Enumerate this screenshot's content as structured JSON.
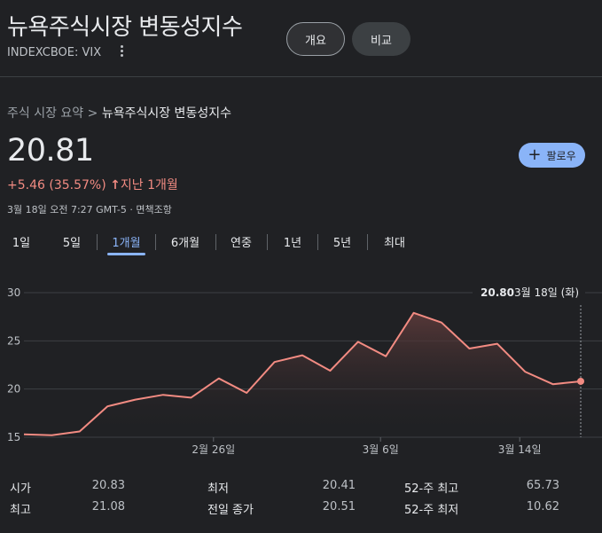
{
  "header": {
    "title": "뉴욕주식시장 변동성지수",
    "ticker": "INDEXCBOE: VIX",
    "buttons": {
      "overview": "개요",
      "compare": "비교"
    }
  },
  "breadcrumb": {
    "root": "주식 시장 요약",
    "separator": ">",
    "current": "뉴욕주식시장 변동성지수"
  },
  "quote": {
    "price": "20.81",
    "change": "+5.46 (35.57%)",
    "direction_icon": "arrow-up-icon",
    "period": "지난 1개월",
    "timestamp": "3월 18일 오전 7:27 GMT-5 · 면책조항"
  },
  "follow_button": {
    "label": "팔로우",
    "icon": "plus-icon"
  },
  "tabs": [
    {
      "label": "1일",
      "active": false
    },
    {
      "label": "5일",
      "active": false
    },
    {
      "label": "1개월",
      "active": true
    },
    {
      "label": "6개월",
      "active": false
    },
    {
      "label": "연중",
      "active": false
    },
    {
      "label": "1년",
      "active": false
    },
    {
      "label": "5년",
      "active": false
    },
    {
      "label": "최대",
      "active": false
    }
  ],
  "chart_data": {
    "type": "area",
    "y_ticks": [
      "30",
      "25",
      "20",
      "15"
    ],
    "ylim": [
      15,
      30
    ],
    "x_tick_labels": [
      "2월 26일",
      "3월 6일",
      "3월 14일"
    ],
    "values": [
      15.3,
      15.2,
      15.6,
      18.2,
      18.9,
      19.4,
      19.1,
      21.1,
      19.6,
      22.8,
      23.5,
      21.9,
      24.9,
      23.4,
      27.9,
      26.9,
      24.2,
      24.7,
      21.8,
      20.5,
      20.8
    ],
    "hover_value": "20.80",
    "hover_date": "3월 18일 (화)",
    "colors": {
      "line": "#f28b82",
      "grid": "#3c4043",
      "fill_top": "#5c3a3a"
    }
  },
  "stats": [
    {
      "label": "시가",
      "value": "20.83"
    },
    {
      "label": "최고",
      "value": "21.08"
    },
    {
      "label": "최저",
      "value": "20.41"
    },
    {
      "label": "전일 종가",
      "value": "20.51"
    },
    {
      "label": "52-주 최고",
      "value": "65.73"
    },
    {
      "label": "52-주 최저",
      "value": "10.62"
    }
  ]
}
